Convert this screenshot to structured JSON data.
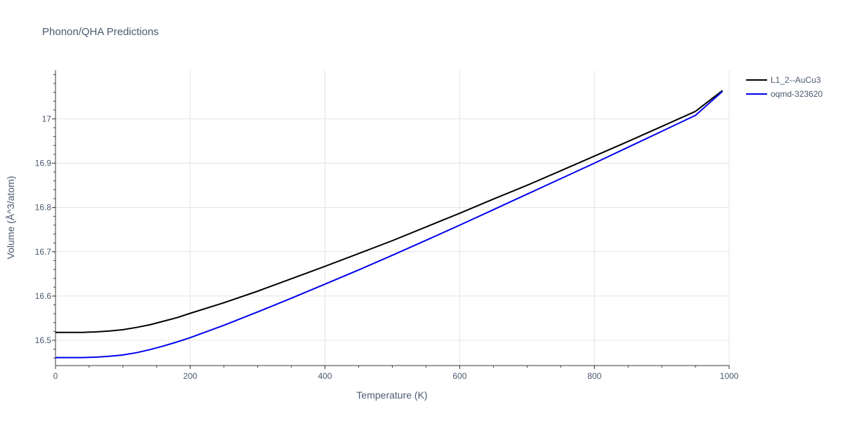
{
  "chart_data": {
    "type": "line",
    "title": "Phonon/QHA Predictions",
    "xlabel": "Temperature (K)",
    "ylabel": "Volume (Å^3/atom)",
    "xlim": [
      0,
      1000
    ],
    "ylim": [
      16.443,
      17.11
    ],
    "x_ticks": [
      0,
      200,
      400,
      600,
      800,
      1000
    ],
    "y_ticks": [
      16.5,
      16.6,
      16.7,
      16.8,
      16.9,
      17
    ],
    "x_tick_labels": [
      "0",
      "200",
      "400",
      "600",
      "800",
      "1000"
    ],
    "y_tick_labels": [
      "16.5",
      "16.6",
      "16.7",
      "16.8",
      "16.9",
      "17"
    ],
    "grid": true,
    "legend_position": "top-right",
    "series": [
      {
        "name": "L1_2--AuCu3",
        "color": "#000000",
        "x": [
          0,
          20,
          40,
          60,
          80,
          100,
          120,
          140,
          160,
          180,
          200,
          250,
          300,
          350,
          400,
          450,
          500,
          550,
          600,
          650,
          700,
          750,
          800,
          850,
          900,
          950,
          990
        ],
        "y": [
          16.518,
          16.518,
          16.518,
          16.519,
          16.521,
          16.524,
          16.529,
          16.535,
          16.543,
          16.551,
          16.561,
          16.585,
          16.611,
          16.639,
          16.667,
          16.696,
          16.725,
          16.756,
          16.787,
          16.819,
          16.85,
          16.883,
          16.916,
          16.949,
          16.983,
          17.017,
          17.064
        ]
      },
      {
        "name": "oqmd-323620",
        "color": "#0000ee",
        "x": [
          0,
          20,
          40,
          60,
          80,
          100,
          120,
          140,
          160,
          180,
          200,
          250,
          300,
          350,
          400,
          450,
          500,
          550,
          600,
          650,
          700,
          750,
          800,
          850,
          900,
          950,
          990
        ],
        "y": [
          16.461,
          16.461,
          16.461,
          16.462,
          16.464,
          16.467,
          16.472,
          16.479,
          16.487,
          16.496,
          16.506,
          16.534,
          16.564,
          16.595,
          16.627,
          16.659,
          16.692,
          16.726,
          16.76,
          16.795,
          16.83,
          16.865,
          16.9,
          16.936,
          16.972,
          17.008,
          17.062
        ]
      }
    ]
  }
}
